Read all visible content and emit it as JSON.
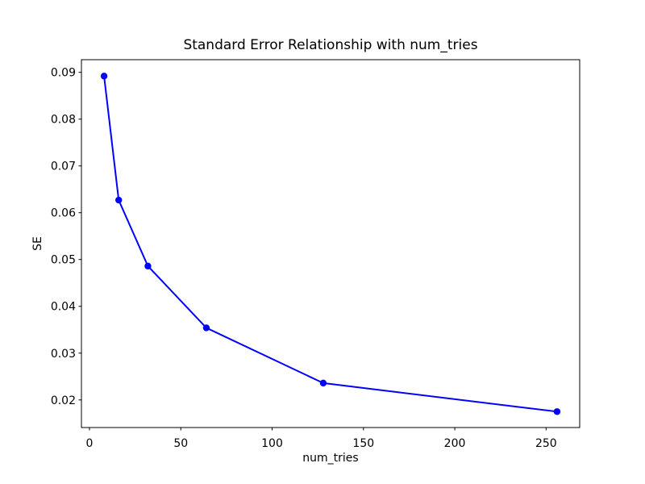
{
  "figure": {
    "background": "#ffffff"
  },
  "chart_data": {
    "type": "line",
    "title": "Standard Error Relationship with num_tries",
    "xlabel": "num_tries",
    "ylabel": "SE",
    "x": [
      8,
      16,
      32,
      64,
      128,
      256
    ],
    "y": [
      0.0892,
      0.0627,
      0.0486,
      0.0354,
      0.0236,
      0.0175
    ],
    "xticks": [
      0,
      50,
      100,
      150,
      200,
      250
    ],
    "yticks": [
      0.02,
      0.03,
      0.04,
      0.05,
      0.06,
      0.07,
      0.08,
      0.09
    ],
    "xlim": [
      -4.4,
      268.4
    ],
    "ylim": [
      0.0141,
      0.0927
    ],
    "line_color": "#0000ff",
    "marker": "circle",
    "marker_color": "#0000ff",
    "spine_color": "#000000",
    "text_color": "#000000",
    "grid": false,
    "legend": null
  }
}
